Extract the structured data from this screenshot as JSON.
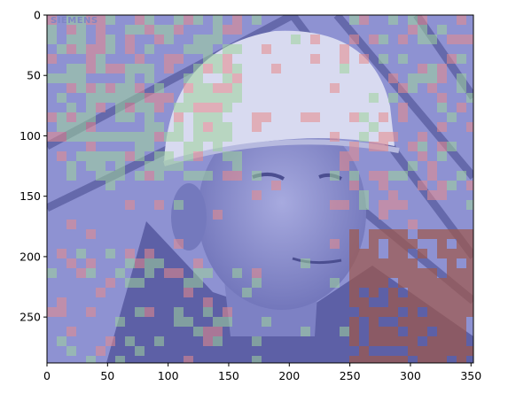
{
  "figure": {
    "photo_subject": "worker in white hard hat with mask overlay",
    "watermark_text": "SIEMENS",
    "colors": {
      "base_tint": "#8e92d2",
      "overlay_red": "#e88a8a",
      "overlay_green": "#9fd49a",
      "overlay_brown": "#a0584a",
      "axis": "#000000"
    }
  },
  "axes": {
    "x_ticks": [
      "0",
      "50",
      "100",
      "150",
      "200",
      "250",
      "300",
      "350"
    ],
    "y_ticks": [
      "0",
      "50",
      "100",
      "150",
      "200",
      "250"
    ],
    "x_range": [
      0,
      352
    ],
    "y_range": [
      0,
      288
    ],
    "y_inverted": true
  }
}
